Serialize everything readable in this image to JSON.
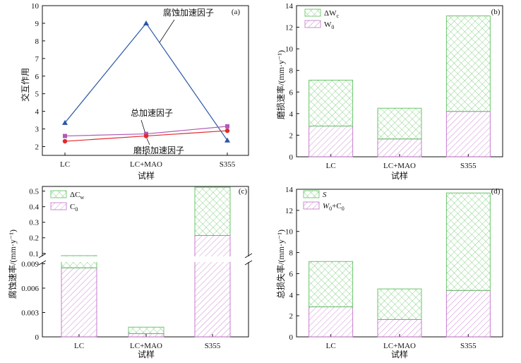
{
  "chart_data": [
    {
      "panel": "(a)",
      "type": "line",
      "categories": [
        "LC",
        "LC+MAO",
        "S355"
      ],
      "xlabel": "试样",
      "ylabel": "交互作用",
      "ylim": [
        1.5,
        10
      ],
      "yticks": [
        2,
        3,
        4,
        5,
        6,
        7,
        8,
        9,
        10
      ],
      "series": [
        {
          "name": "腐蚀加速因子",
          "values": [
            3.35,
            9.0,
            2.35
          ],
          "color": "#2a56a6",
          "marker": "triangle"
        },
        {
          "name": "总加速因子",
          "values": [
            2.6,
            2.72,
            3.15
          ],
          "color": "#b05ab8",
          "marker": "square"
        },
        {
          "name": "磨损加速因子",
          "values": [
            2.3,
            2.6,
            2.9
          ],
          "color": "#e02a2a",
          "marker": "circle"
        }
      ]
    },
    {
      "panel": "(b)",
      "type": "bar",
      "stacked": true,
      "categories": [
        "LC",
        "LC+MAO",
        "S355"
      ],
      "xlabel": "试样",
      "ylabel": "磨损速率/(mm·y⁻¹)",
      "ylim": [
        0,
        14
      ],
      "yticks": [
        0,
        2,
        4,
        6,
        8,
        10,
        12,
        14
      ],
      "legend_position": "top-left",
      "series": [
        {
          "name_main": "W",
          "name_sub": "0",
          "values": [
            2.85,
            1.65,
            4.2
          ],
          "color": "#c070c8",
          "hatch": "diagonal"
        },
        {
          "name_main": "ΔW",
          "name_sub": "c",
          "values": [
            4.25,
            2.85,
            8.85
          ],
          "color": "#5cc05c",
          "hatch": "cross"
        }
      ]
    },
    {
      "panel": "(c)",
      "type": "bar",
      "stacked": true,
      "broken_axis": true,
      "categories": [
        "LC",
        "LC+MAO",
        "S355"
      ],
      "xlabel": "试样",
      "ylabel": "腐蚀速率/(mm·y⁻¹)",
      "lower_ylim": [
        0,
        0.01
      ],
      "lower_yticks": [
        "0",
        "0.003",
        "0.006",
        "0.009"
      ],
      "upper_ylim": [
        0.04,
        0.53
      ],
      "upper_yticks": [
        "0.1",
        "0.2",
        "0.3",
        "0.4",
        "0.5"
      ],
      "legend_position": "top-left",
      "series": [
        {
          "name_main": "C",
          "name_sub": "0",
          "values": [
            0.0085,
            0.0004,
            0.215
          ],
          "color": "#c070c8",
          "hatch": "diagonal"
        },
        {
          "name_main": "ΔC",
          "name_sub": "w",
          "values": [
            0.0015,
            0.0008,
            0.31
          ],
          "color": "#5cc05c",
          "hatch": "cross"
        }
      ]
    },
    {
      "panel": "(d)",
      "type": "bar",
      "stacked": true,
      "categories": [
        "LC",
        "LC+MAO",
        "S355"
      ],
      "xlabel": "试样",
      "ylabel": "总损失率/(mm·y⁻¹)",
      "ylim": [
        0,
        14
      ],
      "yticks": [
        0,
        2,
        4,
        6,
        8,
        10,
        12,
        14
      ],
      "legend_position": "top-left",
      "series": [
        {
          "name_main": "W",
          "name_sub": "0",
          "name_tail": "+C",
          "name_tail_sub": "0",
          "values": [
            2.85,
            1.65,
            4.4
          ],
          "color": "#c070c8",
          "hatch": "diagonal"
        },
        {
          "name_main": "S",
          "name_sub": "",
          "values": [
            4.3,
            2.9,
            9.25
          ],
          "color": "#5cc05c",
          "hatch": "cross"
        }
      ]
    }
  ]
}
